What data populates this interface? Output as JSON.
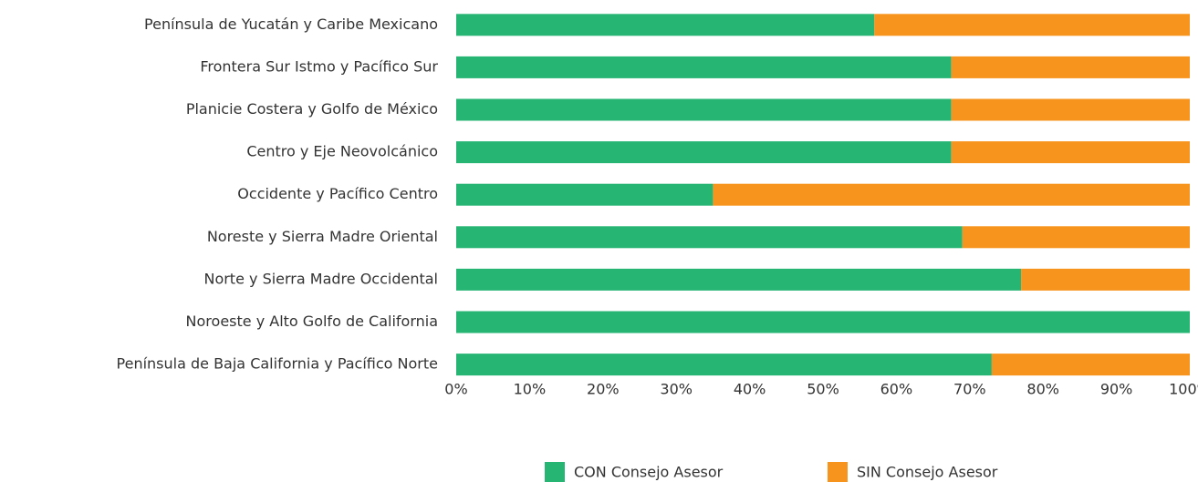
{
  "chart_data": {
    "type": "stacked_bar_horizontal",
    "categories": [
      "Península de Yucatán y Caribe Mexicano",
      "Frontera Sur Istmo y Pacífico Sur",
      "Planicie Costera y Golfo de México",
      "Centro y Eje Neovolcánico",
      "Occidente y Pacífico Centro",
      "Noreste y Sierra Madre Oriental",
      "Norte y Sierra Madre Occidental",
      "Noroeste y Alto Golfo de California",
      "Península de Baja California y Pacífico Norte"
    ],
    "series": [
      {
        "name": "CON Consejo Asesor",
        "color": "#27b574",
        "values": [
          57,
          67.5,
          67.5,
          67.5,
          35,
          69,
          77,
          100,
          73
        ]
      },
      {
        "name": "SIN Consejo Asesor",
        "color": "#f7941d",
        "values": [
          43,
          32.5,
          32.5,
          32.5,
          65,
          31,
          23,
          0,
          27
        ]
      }
    ],
    "xlim": [
      0,
      100
    ],
    "xticks": [
      {
        "value": 0,
        "label": "0%"
      },
      {
        "value": 10,
        "label": "10%"
      },
      {
        "value": 20,
        "label": "20%"
      },
      {
        "value": 30,
        "label": "30%"
      },
      {
        "value": 40,
        "label": "40%"
      },
      {
        "value": 50,
        "label": "50%"
      },
      {
        "value": 60,
        "label": "60%"
      },
      {
        "value": 70,
        "label": "70%"
      },
      {
        "value": 80,
        "label": "80%"
      },
      {
        "value": 90,
        "label": "90%"
      },
      {
        "value": 100,
        "label": "100%"
      }
    ],
    "legend": "bottom"
  }
}
